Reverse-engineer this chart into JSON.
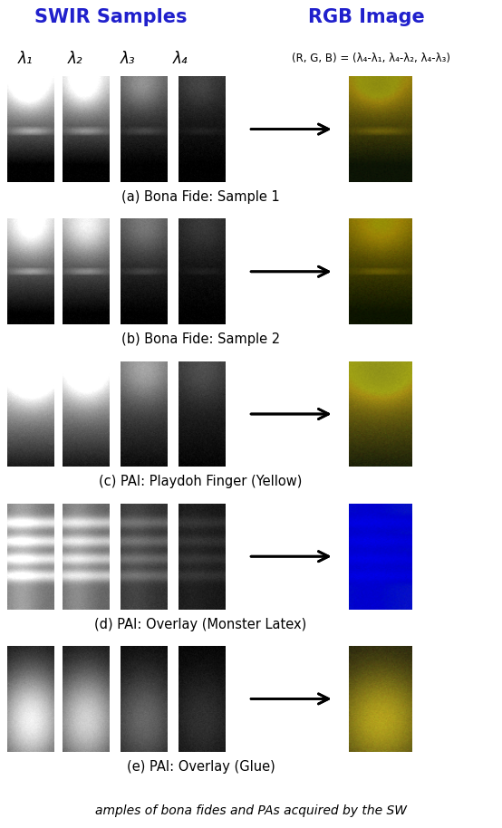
{
  "title_left": "SWIR Samples",
  "title_right": "RGB Image",
  "title_color": "#2020cc",
  "lambda_labels": [
    "λ₁",
    "λ₂",
    "λ₃",
    "λ₄"
  ],
  "rgb_formula": "(R, G, B) = (λ₄-λ₁, λ₄-λ₂, λ₄-λ₃)",
  "captions": [
    "(a) Bona Fide: Sample 1",
    "(b) Bona Fide: Sample 2",
    "(c) PAI: Playdoh Finger (Yellow)",
    "(d) PAI: Overlay (Monster Latex)",
    "(e) PAI: Overlay (Glue)"
  ],
  "caption_color": "#000000",
  "background_color": "#ffffff"
}
